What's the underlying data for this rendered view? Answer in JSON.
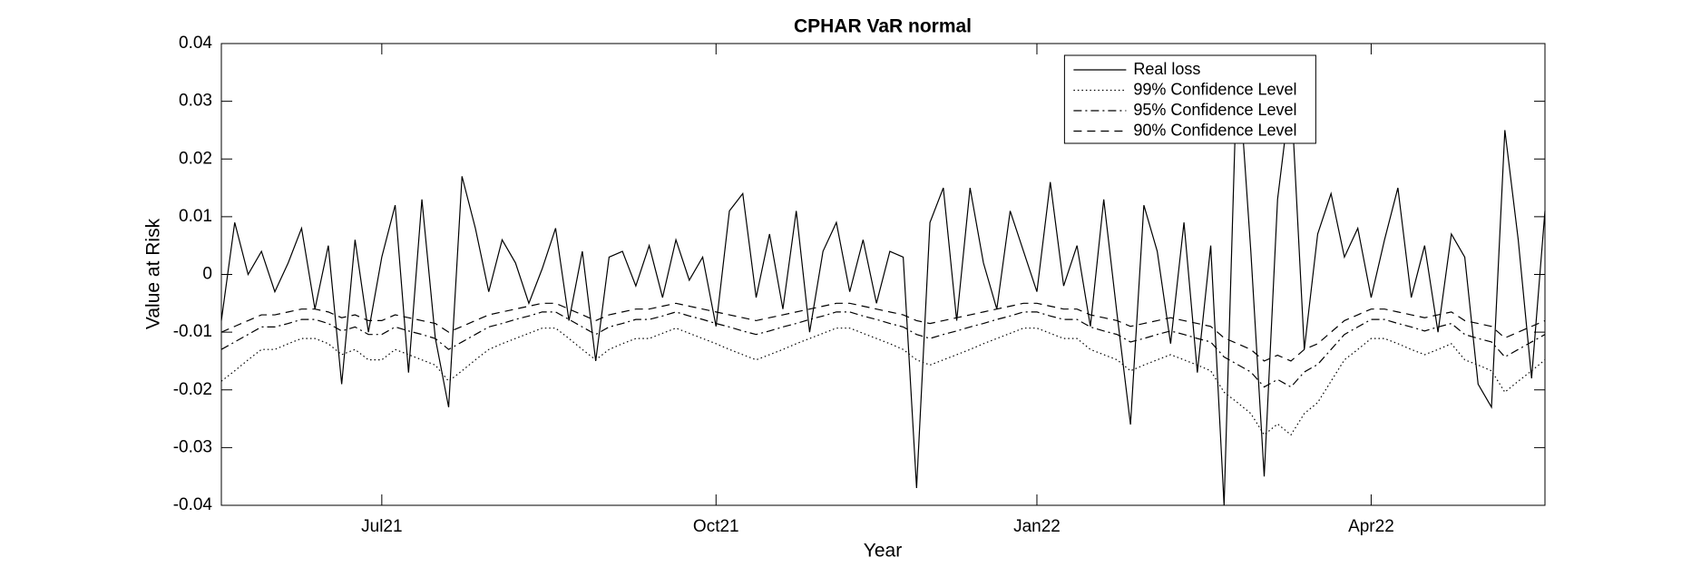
{
  "chart_data": {
    "type": "line",
    "title": "CPHAR VaR normal",
    "x_label": "Year",
    "y_label": "Value at Risk",
    "categories": [
      null,
      null,
      null,
      null,
      null,
      null,
      null,
      null,
      null,
      null,
      null,
      null,
      "Jul21",
      null,
      null,
      null,
      null,
      null,
      null,
      null,
      null,
      null,
      null,
      null,
      null,
      null,
      null,
      null,
      null,
      null,
      null,
      null,
      null,
      null,
      null,
      null,
      null,
      "Oct21",
      null,
      null,
      null,
      null,
      null,
      null,
      null,
      null,
      null,
      null,
      null,
      null,
      null,
      null,
      null,
      null,
      null,
      null,
      null,
      null,
      null,
      null,
      null,
      "Jan22",
      null,
      null,
      null,
      null,
      null,
      null,
      null,
      null,
      null,
      null,
      null,
      null,
      null,
      null,
      null,
      null,
      null,
      null,
      null,
      null,
      null,
      null,
      null,
      null,
      "Apr22",
      null,
      null,
      null,
      null,
      null,
      null,
      null,
      null,
      null,
      null,
      null,
      null,
      null
    ],
    "series": [
      {
        "name": "Real loss",
        "color": "#000000",
        "dash": "solid",
        "values": [
          -0.008,
          0.009,
          0.0,
          0.004,
          -0.003,
          0.002,
          0.008,
          -0.006,
          0.005,
          -0.019,
          0.006,
          -0.01,
          0.003,
          0.012,
          -0.017,
          0.013,
          -0.011,
          -0.023,
          0.017,
          0.008,
          -0.003,
          0.006,
          0.002,
          -0.005,
          0.001,
          0.008,
          -0.008,
          0.004,
          -0.015,
          0.003,
          0.004,
          -0.002,
          0.005,
          -0.004,
          0.006,
          -0.001,
          0.003,
          -0.009,
          0.011,
          0.014,
          -0.004,
          0.007,
          -0.006,
          0.011,
          -0.01,
          0.004,
          0.009,
          -0.003,
          0.006,
          -0.005,
          0.004,
          0.003,
          -0.037,
          0.009,
          0.015,
          -0.008,
          0.015,
          0.002,
          -0.006,
          0.011,
          0.004,
          -0.003,
          0.016,
          -0.002,
          0.005,
          -0.009,
          0.013,
          -0.007,
          -0.026,
          0.012,
          0.004,
          -0.012,
          0.009,
          -0.017,
          0.005,
          -0.04,
          0.038,
          0.004,
          -0.035,
          0.013,
          0.032,
          -0.013,
          0.007,
          0.014,
          0.003,
          0.008,
          -0.004,
          0.006,
          0.015,
          -0.004,
          0.005,
          -0.01,
          0.007,
          0.003,
          -0.019,
          -0.023,
          0.025,
          0.006,
          -0.018,
          0.011
        ]
      },
      {
        "name": "99% Confidence Level",
        "color": "#000000",
        "dash": "dotted",
        "values": [
          -0.0185,
          -0.0167,
          -0.0148,
          -0.013,
          -0.013,
          -0.012,
          -0.0111,
          -0.0111,
          -0.012,
          -0.0139,
          -0.013,
          -0.0148,
          -0.0148,
          -0.013,
          -0.0139,
          -0.0148,
          -0.0157,
          -0.0185,
          -0.0167,
          -0.0148,
          -0.013,
          -0.012,
          -0.0111,
          -0.0102,
          -0.0093,
          -0.0093,
          -0.0111,
          -0.013,
          -0.0148,
          -0.013,
          -0.012,
          -0.0111,
          -0.0111,
          -0.0102,
          -0.0093,
          -0.0102,
          -0.0111,
          -0.012,
          -0.013,
          -0.0139,
          -0.0148,
          -0.0139,
          -0.013,
          -0.012,
          -0.0111,
          -0.0102,
          -0.0093,
          -0.0093,
          -0.0102,
          -0.0111,
          -0.012,
          -0.013,
          -0.0148,
          -0.0157,
          -0.0148,
          -0.0139,
          -0.013,
          -0.012,
          -0.0111,
          -0.0102,
          -0.0093,
          -0.0093,
          -0.0102,
          -0.0111,
          -0.0111,
          -0.013,
          -0.0139,
          -0.0148,
          -0.0167,
          -0.0157,
          -0.0148,
          -0.0139,
          -0.0148,
          -0.0157,
          -0.0167,
          -0.0204,
          -0.0222,
          -0.0241,
          -0.0278,
          -0.0259,
          -0.0278,
          -0.0241,
          -0.0222,
          -0.0185,
          -0.0148,
          -0.013,
          -0.0111,
          -0.0111,
          -0.012,
          -0.013,
          -0.0139,
          -0.013,
          -0.012,
          -0.0148,
          -0.0157,
          -0.0167,
          -0.0204,
          -0.0185,
          -0.0167,
          -0.0148
        ]
      },
      {
        "name": "95% Confidence Level",
        "color": "#000000",
        "dash": "dashdot",
        "values": [
          -0.013,
          -0.0117,
          -0.0104,
          -0.0091,
          -0.0091,
          -0.0085,
          -0.0078,
          -0.0078,
          -0.0085,
          -0.0098,
          -0.0091,
          -0.0104,
          -0.0104,
          -0.0091,
          -0.0098,
          -0.0104,
          -0.0111,
          -0.013,
          -0.0117,
          -0.0104,
          -0.0091,
          -0.0085,
          -0.0078,
          -0.0072,
          -0.0065,
          -0.0065,
          -0.0078,
          -0.0091,
          -0.0104,
          -0.0091,
          -0.0085,
          -0.0078,
          -0.0078,
          -0.0072,
          -0.0065,
          -0.0072,
          -0.0078,
          -0.0085,
          -0.0091,
          -0.0098,
          -0.0104,
          -0.0098,
          -0.0091,
          -0.0085,
          -0.0078,
          -0.0072,
          -0.0065,
          -0.0065,
          -0.0072,
          -0.0078,
          -0.0085,
          -0.0091,
          -0.0104,
          -0.0111,
          -0.0104,
          -0.0098,
          -0.0091,
          -0.0085,
          -0.0078,
          -0.0072,
          -0.0065,
          -0.0065,
          -0.0072,
          -0.0078,
          -0.0078,
          -0.0091,
          -0.0098,
          -0.0104,
          -0.0117,
          -0.0111,
          -0.0104,
          -0.0098,
          -0.0104,
          -0.0111,
          -0.0117,
          -0.0143,
          -0.0156,
          -0.0169,
          -0.0195,
          -0.0182,
          -0.0195,
          -0.0169,
          -0.0156,
          -0.013,
          -0.0104,
          -0.0091,
          -0.0078,
          -0.0078,
          -0.0085,
          -0.0091,
          -0.0098,
          -0.0091,
          -0.0085,
          -0.0104,
          -0.0111,
          -0.0117,
          -0.0143,
          -0.013,
          -0.0117,
          -0.0104
        ]
      },
      {
        "name": "90% Confidence Level",
        "color": "#000000",
        "dash": "dashed",
        "values": [
          -0.01,
          -0.009,
          -0.008,
          -0.007,
          -0.007,
          -0.0065,
          -0.006,
          -0.006,
          -0.0065,
          -0.0075,
          -0.007,
          -0.008,
          -0.008,
          -0.007,
          -0.0075,
          -0.008,
          -0.0085,
          -0.01,
          -0.009,
          -0.008,
          -0.007,
          -0.0065,
          -0.006,
          -0.0055,
          -0.005,
          -0.005,
          -0.006,
          -0.007,
          -0.008,
          -0.007,
          -0.0065,
          -0.006,
          -0.006,
          -0.0055,
          -0.005,
          -0.0055,
          -0.006,
          -0.0065,
          -0.007,
          -0.0075,
          -0.008,
          -0.0075,
          -0.007,
          -0.0065,
          -0.006,
          -0.0055,
          -0.005,
          -0.005,
          -0.0055,
          -0.006,
          -0.0065,
          -0.007,
          -0.008,
          -0.0085,
          -0.008,
          -0.0075,
          -0.007,
          -0.0065,
          -0.006,
          -0.0055,
          -0.005,
          -0.005,
          -0.0055,
          -0.006,
          -0.006,
          -0.007,
          -0.0075,
          -0.008,
          -0.009,
          -0.0085,
          -0.008,
          -0.0075,
          -0.008,
          -0.0085,
          -0.009,
          -0.011,
          -0.012,
          -0.013,
          -0.015,
          -0.014,
          -0.015,
          -0.013,
          -0.012,
          -0.01,
          -0.008,
          -0.007,
          -0.006,
          -0.006,
          -0.0065,
          -0.007,
          -0.0075,
          -0.007,
          -0.0065,
          -0.008,
          -0.0085,
          -0.009,
          -0.011,
          -0.01,
          -0.009,
          -0.008
        ]
      }
    ],
    "ylim": [
      -0.04,
      0.04
    ],
    "yticks": [
      -0.04,
      -0.03,
      -0.02,
      -0.01,
      0,
      0.01,
      0.02,
      0.03,
      0.04
    ],
    "grid": false,
    "legend": "top"
  }
}
